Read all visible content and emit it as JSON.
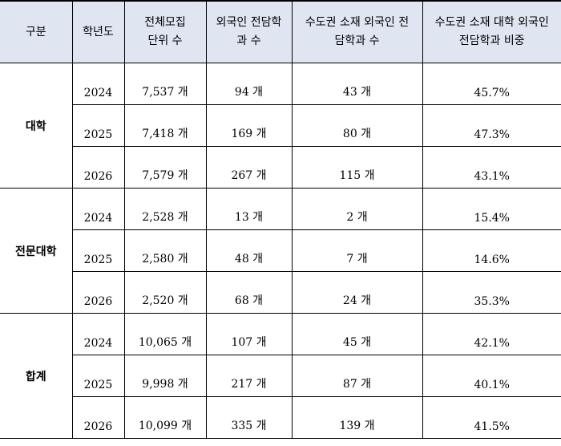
{
  "header": {
    "category": "구분",
    "year": "학년도",
    "total_units_line1": "전체모집",
    "total_units_line2": "단위 수",
    "foreign_depts_line1": "외국인 전담학",
    "foreign_depts_line2": "과 수",
    "capital_depts_line1": "수도권 소재 외국인 전",
    "capital_depts_line2": "담학과 수",
    "capital_ratio_line1": "수도권 소재 대학 외국인",
    "capital_ratio_line2": "전담학과 비중"
  },
  "groups": [
    {
      "label": "대학",
      "rows": [
        {
          "year": "2024",
          "total_units": "7,537 개",
          "foreign_depts": "94 개",
          "capital_depts": "43 개",
          "capital_ratio": "45.7%"
        },
        {
          "year": "2025",
          "total_units": "7,418 개",
          "foreign_depts": "169 개",
          "capital_depts": "80 개",
          "capital_ratio": "47.3%"
        },
        {
          "year": "2026",
          "total_units": "7,579 개",
          "foreign_depts": "267 개",
          "capital_depts": "115 개",
          "capital_ratio": "43.1%"
        }
      ]
    },
    {
      "label": "전문대학",
      "rows": [
        {
          "year": "2024",
          "total_units": "2,528 개",
          "foreign_depts": "13 개",
          "capital_depts": "2 개",
          "capital_ratio": "15.4%"
        },
        {
          "year": "2025",
          "total_units": "2,580 개",
          "foreign_depts": "48 개",
          "capital_depts": "7 개",
          "capital_ratio": "14.6%"
        },
        {
          "year": "2026",
          "total_units": "2,520 개",
          "foreign_depts": "68 개",
          "capital_depts": "24 개",
          "capital_ratio": "35.3%"
        }
      ]
    },
    {
      "label": "합계",
      "rows": [
        {
          "year": "2024",
          "total_units": "10,065 개",
          "foreign_depts": "107 개",
          "capital_depts": "45 개",
          "capital_ratio": "42.1%"
        },
        {
          "year": "2025",
          "total_units": "9,998 개",
          "foreign_depts": "217 개",
          "capital_depts": "87 개",
          "capital_ratio": "40.1%"
        },
        {
          "year": "2026",
          "total_units": "10,099 개",
          "foreign_depts": "335 개",
          "capital_depts": "139 개",
          "capital_ratio": "41.5%"
        }
      ]
    }
  ]
}
